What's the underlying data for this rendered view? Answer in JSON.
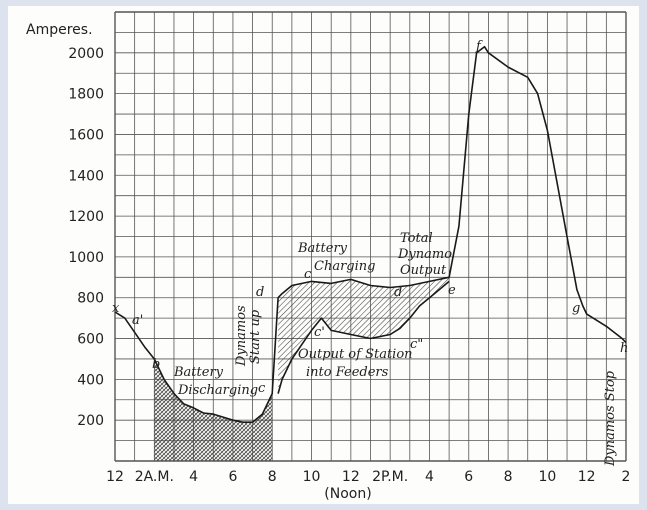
{
  "chart_data": {
    "type": "line",
    "title": "",
    "ylabel": "Amperes.",
    "xlabel": "",
    "ylim": [
      0,
      2200
    ],
    "grid": true,
    "y_ticks": [
      "200",
      "400",
      "600",
      "800",
      "1000",
      "1200",
      "1400",
      "1600",
      "1800",
      "2000"
    ],
    "x_ticks": [
      {
        "label": "12",
        "hour": 0
      },
      {
        "label": "2A.M.",
        "hour": 2
      },
      {
        "label": "4",
        "hour": 4
      },
      {
        "label": "6",
        "hour": 6
      },
      {
        "label": "8",
        "hour": 8
      },
      {
        "label": "10",
        "hour": 10
      },
      {
        "label": "12",
        "hour": 12
      },
      {
        "label": "2P.M.",
        "hour": 14
      },
      {
        "label": "4",
        "hour": 16
      },
      {
        "label": "6",
        "hour": 18
      },
      {
        "label": "8",
        "hour": 20
      },
      {
        "label": "10",
        "hour": 22
      },
      {
        "label": "12",
        "hour": 24
      },
      {
        "label": "2",
        "hour": 26
      }
    ],
    "x_sublabel": "(Noon)",
    "series": [
      {
        "points": [
          [
            0,
            730
          ],
          [
            0.5,
            700
          ],
          [
            1,
            630
          ],
          [
            1.5,
            560
          ],
          [
            2,
            500
          ],
          [
            2.5,
            400
          ],
          [
            3,
            330
          ],
          [
            3.5,
            280
          ],
          [
            4,
            260
          ],
          [
            4.5,
            235
          ],
          [
            5,
            230
          ],
          [
            5.5,
            215
          ],
          [
            6,
            200
          ],
          [
            6.5,
            190
          ],
          [
            7,
            190
          ],
          [
            7.5,
            230
          ],
          [
            8,
            330
          ],
          [
            8.3,
            800
          ],
          [
            8.5,
            820
          ],
          [
            9,
            860
          ],
          [
            10,
            880
          ],
          [
            11,
            870
          ],
          [
            12,
            890
          ],
          [
            13,
            860
          ],
          [
            14,
            850
          ],
          [
            15,
            860
          ],
          [
            16,
            880
          ],
          [
            17,
            900
          ],
          [
            17.5,
            1150
          ],
          [
            18,
            1700
          ],
          [
            18.4,
            2000
          ],
          [
            18.8,
            2030
          ],
          [
            19,
            2000
          ],
          [
            20,
            1930
          ],
          [
            21,
            1880
          ],
          [
            21.5,
            1800
          ],
          [
            22,
            1620
          ],
          [
            22.5,
            1360
          ],
          [
            23,
            1100
          ],
          [
            23.5,
            840
          ],
          [
            23.8,
            760
          ],
          [
            24,
            720
          ],
          [
            25,
            660
          ],
          [
            25.8,
            600
          ],
          [
            26,
            580
          ]
        ]
      },
      {
        "points": [
          [
            8.3,
            330
          ],
          [
            8.5,
            400
          ],
          [
            9,
            500
          ],
          [
            9.5,
            570
          ],
          [
            10,
            640
          ],
          [
            10.5,
            700
          ],
          [
            11,
            640
          ],
          [
            12,
            620
          ],
          [
            13,
            600
          ],
          [
            14,
            620
          ],
          [
            14.5,
            650
          ],
          [
            15,
            700
          ],
          [
            15.5,
            760
          ],
          [
            16,
            800
          ],
          [
            16.5,
            840
          ],
          [
            17,
            880
          ]
        ]
      }
    ],
    "discharge_band": [
      [
        2,
        500
      ],
      [
        2.5,
        400
      ],
      [
        3,
        330
      ],
      [
        3.5,
        280
      ],
      [
        4,
        260
      ],
      [
        4.5,
        235
      ],
      [
        5,
        230
      ],
      [
        5.5,
        215
      ],
      [
        6,
        200
      ],
      [
        6.5,
        190
      ],
      [
        7,
        190
      ],
      [
        7.5,
        230
      ],
      [
        8,
        330
      ]
    ],
    "annotations": {
      "x": "x",
      "a1": "a'",
      "b": "b",
      "c": "c",
      "d": "d",
      "d1": "d",
      "c1": "c'",
      "c2": "c",
      "c3": "c\"",
      "e": "e",
      "f": "f",
      "g": "g",
      "h": "h",
      "battery_discharging_1": "Battery",
      "battery_discharging_2": "Discharging",
      "dynamos_start_1": "Dynamos",
      "dynamos_start_2": "Start up",
      "battery_charging_1": "Battery",
      "battery_charging_2": "Charging",
      "total_output_1": "Total",
      "total_output_2": "Dynamo",
      "total_output_3": "Output",
      "station_output_1": "Output of Station",
      "station_output_2": "into Feeders",
      "dynamos_stop": "Dynamos Stop"
    }
  }
}
